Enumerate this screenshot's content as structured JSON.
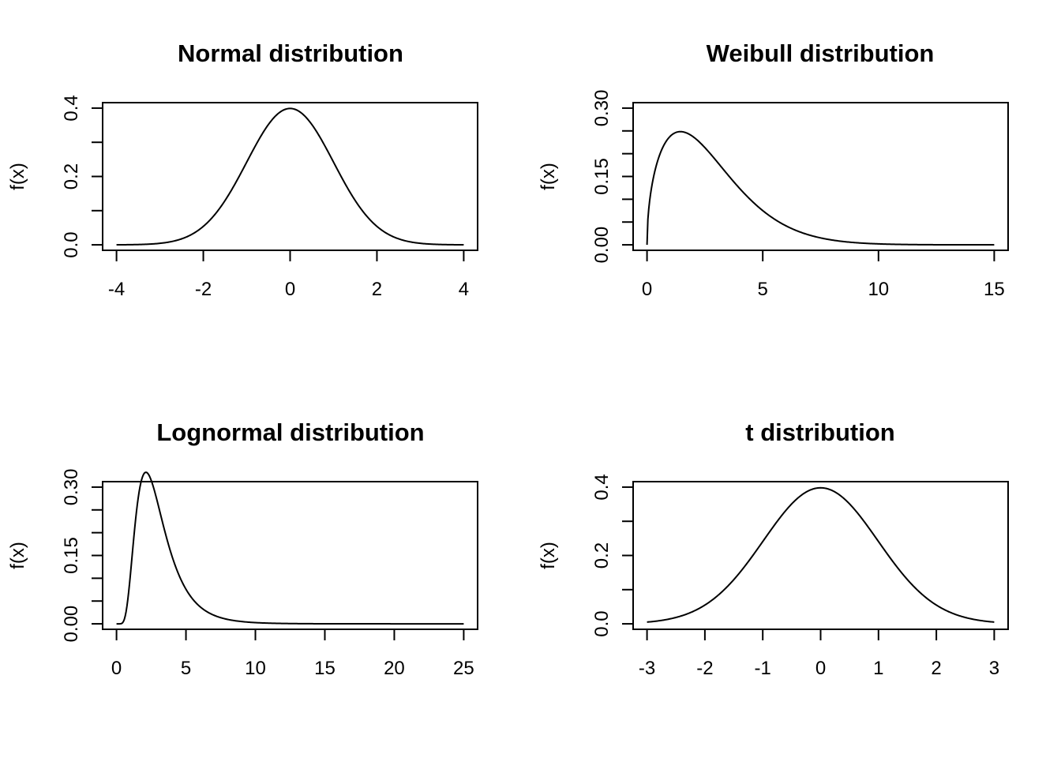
{
  "chart_data": [
    {
      "type": "line",
      "title": "Normal distribution",
      "xlabel": "",
      "ylabel": "f(x)",
      "xlim": [
        -4,
        4
      ],
      "ylim": [
        0,
        0.4
      ],
      "x_ticks": [
        -4,
        -2,
        0,
        2,
        4
      ],
      "x_tick_labels": [
        "-4",
        "-2",
        "0",
        "2",
        "4"
      ],
      "y_ticks": [
        0,
        0.1,
        0.2,
        0.3,
        0.4
      ],
      "y_tick_labels": [
        "0.0",
        "",
        "0.2",
        "",
        "0.4"
      ],
      "curve": "normal",
      "x_range": [
        -4,
        4
      ],
      "params": {
        "mean": 0,
        "sd": 1
      },
      "grid": false
    },
    {
      "type": "line",
      "title": "Weibull distribution",
      "xlabel": "",
      "ylabel": "f(x)",
      "xlim": [
        0,
        15
      ],
      "ylim": [
        0,
        0.3
      ],
      "x_ticks": [
        0,
        5,
        10,
        15
      ],
      "x_tick_labels": [
        "0",
        "5",
        "10",
        "15"
      ],
      "y_ticks": [
        0,
        0.05,
        0.1,
        0.15,
        0.2,
        0.25,
        0.3
      ],
      "y_tick_labels": [
        "0.00",
        "",
        "",
        "0.15",
        "",
        "",
        "0.30"
      ],
      "curve": "weibull",
      "x_range": [
        0,
        15
      ],
      "params": {
        "shape": 1.5,
        "scale": 3
      },
      "grid": false
    },
    {
      "type": "line",
      "title": "Lognormal distribution",
      "xlabel": "",
      "ylabel": "f(x)",
      "xlim": [
        0,
        25
      ],
      "ylim": [
        0,
        0.3
      ],
      "x_ticks": [
        0,
        5,
        10,
        15,
        20,
        25
      ],
      "x_tick_labels": [
        "0",
        "5",
        "10",
        "15",
        "20",
        "25"
      ],
      "y_ticks": [
        0,
        0.05,
        0.1,
        0.15,
        0.2,
        0.25,
        0.3
      ],
      "y_tick_labels": [
        "0.00",
        "",
        "",
        "0.15",
        "",
        "",
        "0.30"
      ],
      "curve": "lognormal",
      "x_range": [
        0,
        25
      ],
      "params": {
        "meanlog": 1,
        "sdlog": 0.5
      },
      "grid": false
    },
    {
      "type": "line",
      "title": "t distribution",
      "xlabel": "",
      "ylabel": "f(x)",
      "xlim": [
        -3,
        3
      ],
      "ylim": [
        0,
        0.4
      ],
      "x_ticks": [
        -3,
        -2,
        -1,
        0,
        1,
        2,
        3
      ],
      "x_tick_labels": [
        "-3",
        "-2",
        "-1",
        "0",
        "1",
        "2",
        "3"
      ],
      "y_ticks": [
        0,
        0.1,
        0.2,
        0.3,
        0.4
      ],
      "y_tick_labels": [
        "0.0",
        "",
        "0.2",
        "",
        "0.4"
      ],
      "curve": "t",
      "x_range": [
        -3,
        3
      ],
      "params": {
        "df": 100
      },
      "grid": false
    }
  ]
}
